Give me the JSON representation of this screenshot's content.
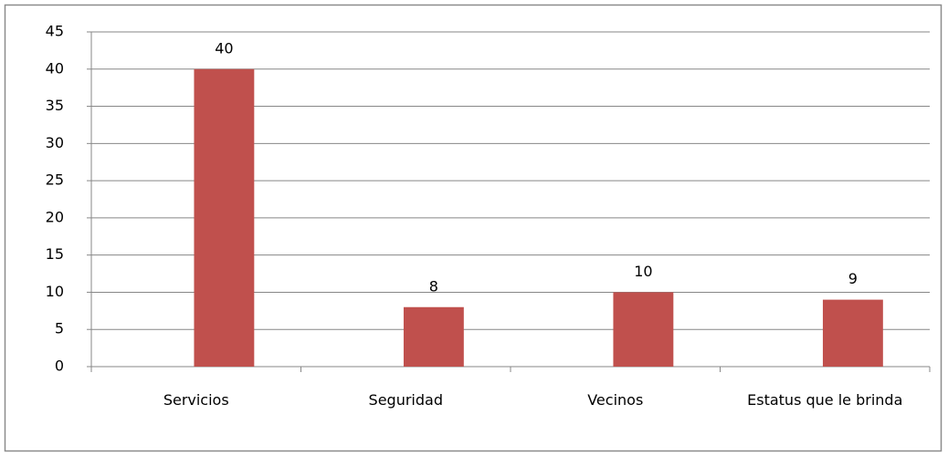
{
  "chart_data": {
    "type": "bar",
    "categories": [
      "Servicios",
      "Seguridad",
      "Vecinos",
      "Estatus que le brinda"
    ],
    "values": [
      40,
      8,
      10,
      9
    ],
    "color": "#c0504d",
    "ylim": [
      0,
      45
    ],
    "yticks": [
      0,
      5,
      10,
      15,
      20,
      25,
      30,
      35,
      40,
      45
    ],
    "grid": true
  }
}
